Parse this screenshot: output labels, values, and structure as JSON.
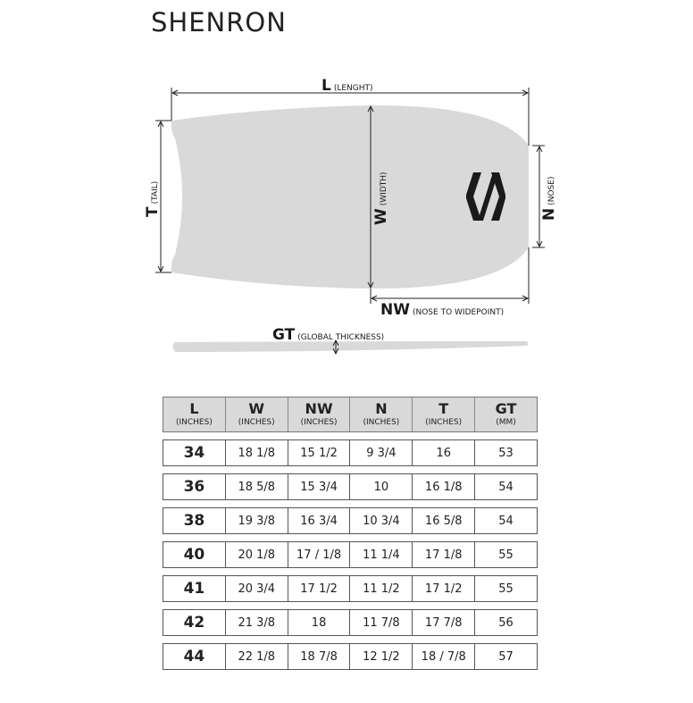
{
  "title": "SHENRON",
  "diagram": {
    "length": {
      "letter": "L",
      "desc": "(LENGHT)"
    },
    "tail": {
      "letter": "T",
      "desc": "(TAIL)"
    },
    "width": {
      "letter": "W",
      "desc": "(WIDTH)"
    },
    "nose": {
      "letter": "N",
      "desc": "(NOSE)"
    },
    "nose_wide": {
      "letter": "NW",
      "desc": "(NOSE TO WIDEPOINT)"
    },
    "thickness": {
      "letter": "GT",
      "desc": "(GLOBAL THICKNESS)"
    },
    "board_color": "#d9d9d9",
    "logo_icon": "shenron-logo"
  },
  "table": {
    "headers": [
      {
        "label": "L",
        "unit": "(INCHES)"
      },
      {
        "label": "W",
        "unit": "(INCHES)"
      },
      {
        "label": "NW",
        "unit": "(INCHES)"
      },
      {
        "label": "N",
        "unit": "(INCHES)"
      },
      {
        "label": "T",
        "unit": "(INCHES)"
      },
      {
        "label": "GT",
        "unit": "(MM)"
      }
    ],
    "rows": [
      [
        "34",
        "18 1/8",
        "15 1/2",
        "9 3/4",
        "16",
        "53"
      ],
      [
        "36",
        "18 5/8",
        "15 3/4",
        "10",
        "16 1/8",
        "54"
      ],
      [
        "38",
        "19 3/8",
        "16 3/4",
        "10 3/4",
        "16 5/8",
        "54"
      ],
      [
        "40",
        "20 1/8",
        "17 / 1/8",
        "11 1/4",
        "17 1/8",
        "55"
      ],
      [
        "41",
        "20 3/4",
        "17 1/2",
        "11 1/2",
        "17 1/2",
        "55"
      ],
      [
        "42",
        "21 3/8",
        "18",
        "11 7/8",
        "17 7/8",
        "56"
      ],
      [
        "44",
        "22 1/8",
        "18 7/8",
        "12 1/2",
        "18 / 7/8",
        "57"
      ]
    ]
  }
}
